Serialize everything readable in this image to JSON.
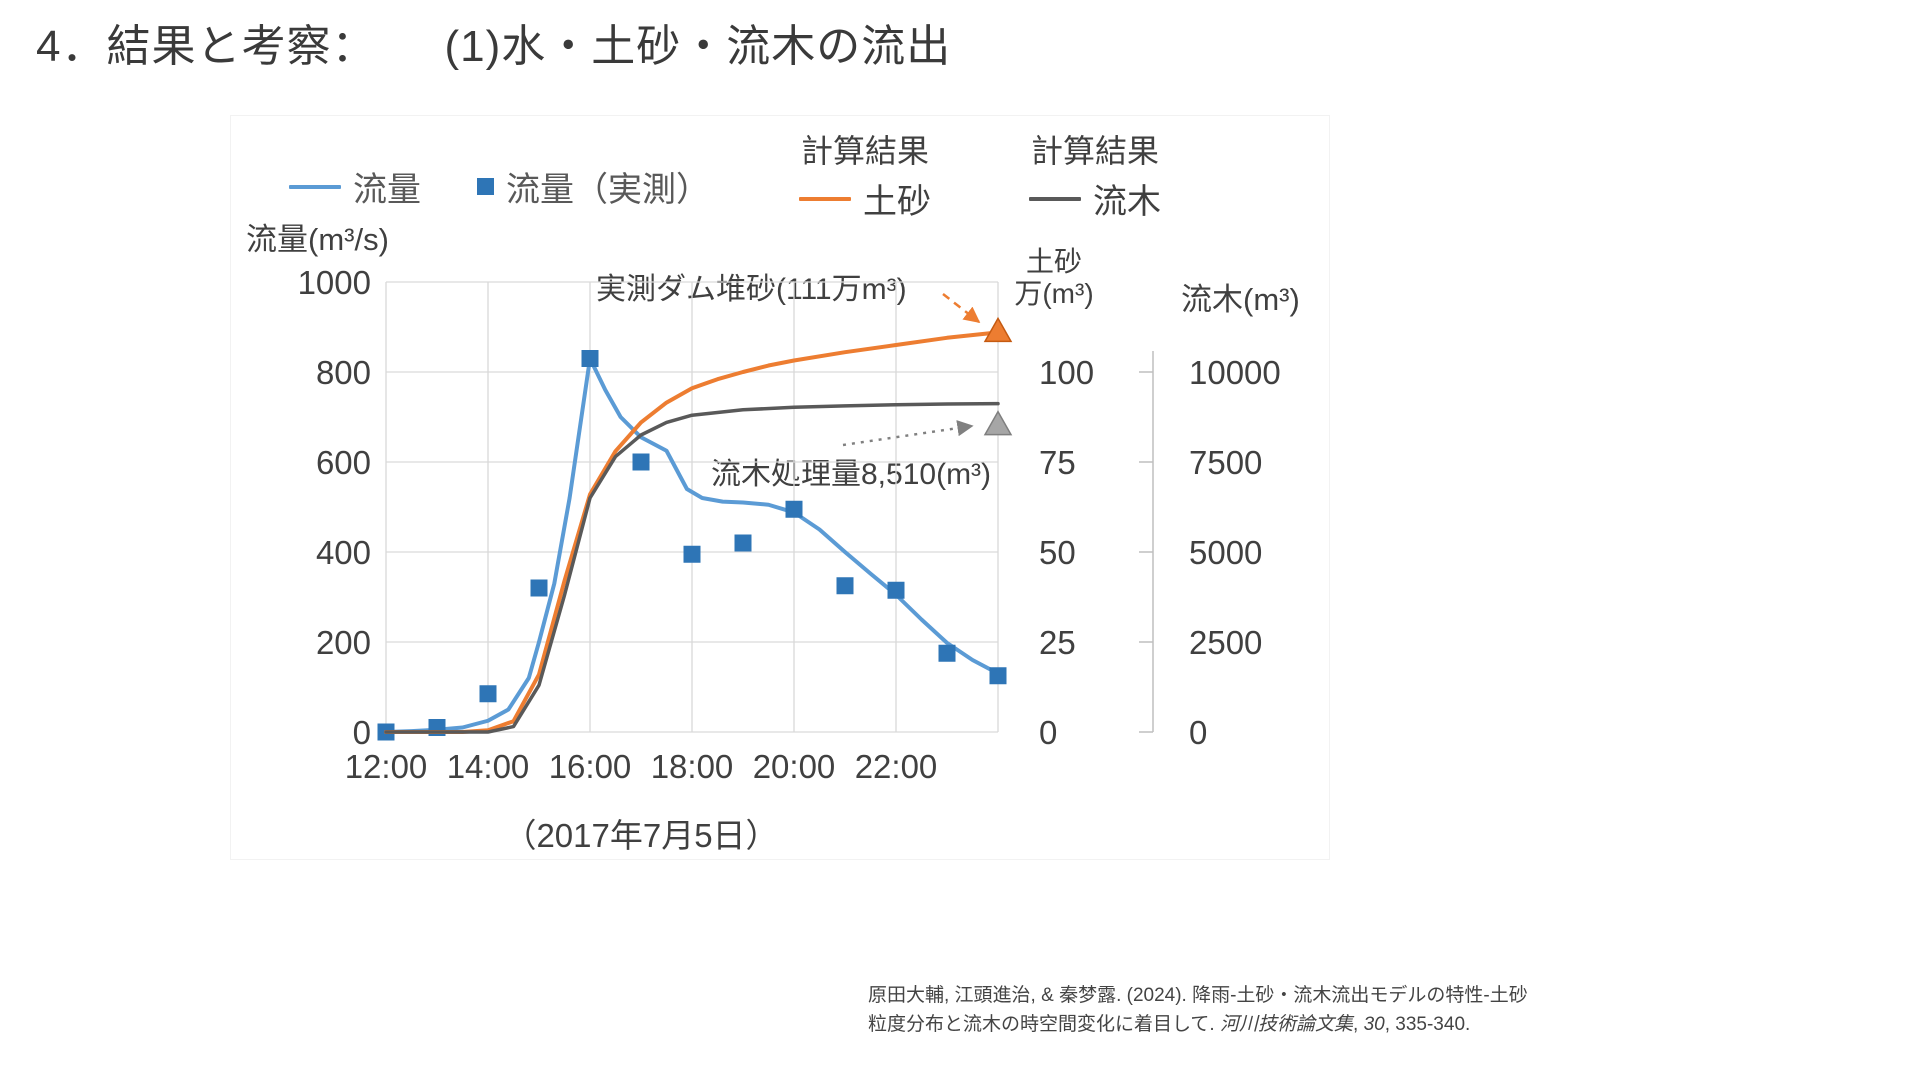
{
  "page": {
    "title": "4．結果と考察：　　(1)水・土砂・流木の流出"
  },
  "legend": {
    "items": [
      {
        "label": "流量",
        "swatch": "line",
        "color": "#5B9BD5"
      },
      {
        "label": "流量（実測）",
        "swatch": "square",
        "color": "#2E75B6"
      },
      {
        "label": "土砂",
        "header": "計算結果",
        "swatch": "line",
        "color": "#ED7D31"
      },
      {
        "label": "流木",
        "header": "計算結果",
        "swatch": "line",
        "color": "#595959"
      }
    ]
  },
  "chart_data": {
    "type": "line",
    "x": {
      "unit": "time of day",
      "tick_labels": [
        "12:00",
        "14:00",
        "16:00",
        "18:00",
        "20:00",
        "22:00"
      ],
      "tick_hours": [
        12,
        14,
        16,
        18,
        20,
        22
      ],
      "range_hours": [
        12,
        24
      ],
      "date_label": "（2017年7月5日）"
    },
    "axes": {
      "flow": {
        "label": "流量(m³/s)",
        "ticks": [
          0,
          200,
          400,
          600,
          800,
          1000
        ],
        "range": [
          0,
          1000
        ]
      },
      "sediment": {
        "label_lines": [
          "土砂",
          "万(m³)"
        ],
        "ticks": [
          100,
          75,
          50,
          25,
          0
        ],
        "range": [
          0,
          125
        ]
      },
      "driftwood": {
        "label": "流木(m³)",
        "ticks": [
          10000,
          7500,
          5000,
          2500,
          0
        ],
        "range": [
          0,
          12500
        ]
      }
    },
    "grid": true,
    "legend_position": "top",
    "series": [
      {
        "id": "flow-line",
        "name": "流量",
        "type": "line",
        "axis": "flow",
        "color": "#5B9BD5",
        "width": 4,
        "points": [
          [
            12,
            0
          ],
          [
            12.5,
            2
          ],
          [
            13,
            5
          ],
          [
            13.5,
            10
          ],
          [
            14,
            25
          ],
          [
            14.4,
            50
          ],
          [
            14.8,
            120
          ],
          [
            15,
            200
          ],
          [
            15.3,
            330
          ],
          [
            15.6,
            520
          ],
          [
            16,
            830
          ],
          [
            16.3,
            760
          ],
          [
            16.6,
            700
          ],
          [
            17,
            655
          ],
          [
            17.5,
            625
          ],
          [
            17.9,
            540
          ],
          [
            18.2,
            520
          ],
          [
            18.6,
            512
          ],
          [
            19,
            510
          ],
          [
            19.5,
            505
          ],
          [
            20,
            488
          ],
          [
            20.5,
            450
          ],
          [
            21,
            400
          ],
          [
            21.5,
            352
          ],
          [
            22,
            305
          ],
          [
            22.5,
            250
          ],
          [
            23,
            198
          ],
          [
            23.5,
            160
          ],
          [
            24,
            130
          ]
        ]
      },
      {
        "id": "flow-measured",
        "name": "流量（実測）",
        "type": "scatter_square",
        "axis": "flow",
        "color": "#2E75B6",
        "points": [
          [
            12,
            0
          ],
          [
            13,
            10
          ],
          [
            14,
            85
          ],
          [
            15,
            320
          ],
          [
            16,
            830
          ],
          [
            17,
            600
          ],
          [
            18,
            395
          ],
          [
            19,
            420
          ],
          [
            20,
            495
          ],
          [
            21,
            325
          ],
          [
            22,
            315
          ],
          [
            23,
            175
          ],
          [
            24,
            125
          ]
        ]
      },
      {
        "id": "sediment-line",
        "name": "計算結果 土砂",
        "type": "line",
        "axis": "sediment",
        "color": "#ED7D31",
        "width": 4,
        "points": [
          [
            12,
            0
          ],
          [
            13.5,
            0
          ],
          [
            14,
            0.5
          ],
          [
            14.5,
            3
          ],
          [
            15,
            16
          ],
          [
            15.5,
            42
          ],
          [
            16,
            66
          ],
          [
            16.5,
            78
          ],
          [
            17,
            86
          ],
          [
            17.5,
            91.5
          ],
          [
            18,
            95.5
          ],
          [
            18.5,
            98
          ],
          [
            19,
            100
          ],
          [
            19.5,
            101.8
          ],
          [
            20,
            103.2
          ],
          [
            21,
            105.5
          ],
          [
            22,
            107.5
          ],
          [
            23,
            109.5
          ],
          [
            24,
            111
          ]
        ]
      },
      {
        "id": "driftwood-line",
        "name": "計算結果 流木",
        "type": "line",
        "axis": "driftwood",
        "color": "#595959",
        "width": 3.5,
        "points": [
          [
            12,
            0
          ],
          [
            14,
            0
          ],
          [
            14.5,
            150
          ],
          [
            15,
            1300
          ],
          [
            15.5,
            3800
          ],
          [
            16,
            6500
          ],
          [
            16.5,
            7650
          ],
          [
            17,
            8250
          ],
          [
            17.5,
            8600
          ],
          [
            18,
            8800
          ],
          [
            19,
            8950
          ],
          [
            20,
            9020
          ],
          [
            21,
            9060
          ],
          [
            22,
            9090
          ],
          [
            23,
            9110
          ],
          [
            24,
            9120
          ]
        ]
      }
    ],
    "markers": [
      {
        "id": "sediment-measured-marker",
        "label": "実測ダム堆砂",
        "axis": "sediment",
        "x": 24,
        "value": 111,
        "shape": "triangle",
        "color": "#ED7D31",
        "stroke": "#C55A11"
      },
      {
        "id": "driftwood-measured-marker",
        "label": "流木処理量",
        "axis": "driftwood",
        "x": 24,
        "value": 8510,
        "shape": "triangle",
        "color": "#A6A6A6",
        "stroke": "#7F7F7F"
      }
    ],
    "annotations": [
      {
        "id": "sediment-annotation",
        "text": "実測ダム堆砂(111万m³)",
        "arrow_style": "dashed",
        "arrow_color": "#ED7D31"
      },
      {
        "id": "driftwood-annotation",
        "text": "流木処理量8,510(m³)",
        "arrow_style": "dotted",
        "arrow_color": "#808080"
      }
    ]
  },
  "citation": {
    "line1": "原田大輔, 江頭進治, & 秦梦露. (2024). 降雨-土砂・流木流出モデルの特性-土砂",
    "line2_pre": "粒度分布と流木の時空間変化に着目して. ",
    "line2_journal": "河川技術論文集",
    "line2_mid": ", ",
    "line2_volume": "30",
    "line2_post": ", 335-340."
  }
}
